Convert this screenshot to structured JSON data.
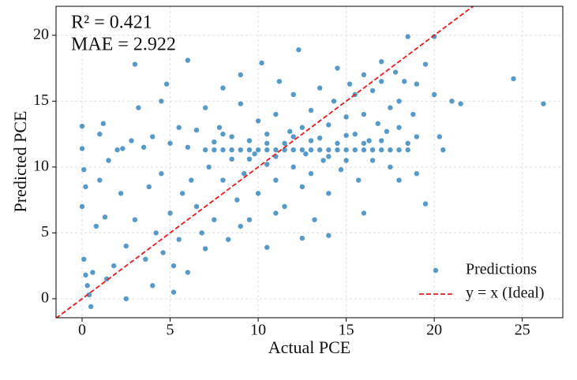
{
  "chart_data": {
    "type": "scatter",
    "xlabel": "Actual PCE",
    "ylabel": "Predicted PCE",
    "annotations": [
      "R² = 0.421",
      "MAE = 2.922"
    ],
    "xlim": [
      -1.48,
      27.3
    ],
    "ylim": [
      -1.44,
      22.2
    ],
    "xticks": [
      0,
      5,
      10,
      15,
      20,
      25
    ],
    "yticks": [
      0,
      5,
      10,
      15,
      20
    ],
    "grid": true,
    "legend": "lower right",
    "series": [
      {
        "name": "Predictions",
        "color": "#1f77b4",
        "x": [
          0,
          0,
          0.1,
          0.2,
          0,
          0.1,
          0.2,
          0.3,
          0.4,
          0.5,
          0.6,
          0.8,
          1,
          1.2,
          1,
          1.5,
          1.3,
          1.4,
          1.8,
          2,
          2.3,
          2.2,
          2.5,
          2.5,
          2.8,
          3,
          3,
          3.2,
          3.5,
          3.6,
          3.8,
          4,
          4,
          4.2,
          4.5,
          4.5,
          4.8,
          4.6,
          5,
          5,
          5.2,
          5.5,
          5.5,
          5.7,
          6,
          6,
          6.2,
          6.5,
          6.5,
          6.8,
          7,
          7,
          7.2,
          7.5,
          7.5,
          7.8,
          8,
          8,
          8,
          8.3,
          8.5,
          8.5,
          8.8,
          9,
          9,
          9,
          9.2,
          9.5,
          9.5,
          9.8,
          10,
          10,
          10,
          10.2,
          10.5,
          10.5,
          11,
          11,
          11,
          11.2,
          11.5,
          11.5,
          11.8,
          12,
          12,
          12,
          12.3,
          12.5,
          12.5,
          12.7,
          13,
          13,
          13,
          13.2,
          13.5,
          13.5,
          13.7,
          14,
          14,
          14,
          14.3,
          14.5,
          14.5,
          14.7,
          15,
          15,
          15,
          15.2,
          15.5,
          15.5,
          15.7,
          16,
          16,
          16,
          16.3,
          16.5,
          16.5,
          16.8,
          17,
          17,
          17,
          17.3,
          17.5,
          17.5,
          17.8,
          18,
          18,
          18,
          18.3,
          18.5,
          18.5,
          18.8,
          19,
          19,
          19,
          19.5,
          19.5,
          20,
          20,
          20.3,
          20.5,
          21,
          21.5,
          24.5,
          26.2,
          12.5,
          14,
          16,
          10.5,
          18,
          9,
          11,
          7,
          6,
          5.2,
          8,
          13,
          15,
          17,
          16,
          12,
          14,
          11,
          10.5,
          9.5,
          12.5,
          13.5,
          14.5,
          15.5,
          16.5,
          17.5,
          18.5,
          11.5,
          10.5,
          9.5,
          8.5,
          7.5
        ],
        "values": [
          13.1,
          11.4,
          9.8,
          8.5,
          7,
          3,
          1.8,
          1,
          0.3,
          -0.6,
          2,
          5.5,
          12.5,
          13.3,
          9,
          10.5,
          6.2,
          1.5,
          2.5,
          11.3,
          11.4,
          8,
          4,
          0,
          12,
          17.8,
          6,
          14.5,
          11.5,
          3,
          8.5,
          12.3,
          1,
          5,
          15,
          9.5,
          16.3,
          3.5,
          11.8,
          6.5,
          2.5,
          13,
          4.5,
          8,
          18.1,
          11.5,
          9,
          7,
          12.8,
          5,
          11.3,
          14.5,
          10,
          6,
          11.9,
          13,
          11.3,
          9,
          16,
          4.5,
          12.3,
          10.6,
          7.5,
          11.3,
          14.8,
          17,
          9.5,
          12,
          6,
          11,
          11.3,
          13.5,
          8,
          17.9,
          10.2,
          12.5,
          11.3,
          14,
          9,
          16.5,
          11.8,
          7,
          12.7,
          11.3,
          10,
          15.5,
          18.9,
          13,
          8.5,
          11,
          11.3,
          14.3,
          9.5,
          6,
          12.2,
          16,
          10.5,
          11.3,
          13.2,
          8,
          15,
          11.8,
          17.5,
          9.8,
          11.3,
          13.8,
          10.5,
          16.3,
          12.5,
          15.5,
          9,
          11.3,
          14,
          17,
          12,
          10.5,
          15.8,
          13.3,
          11.3,
          16.5,
          18,
          12.7,
          14.5,
          10,
          17.2,
          11.3,
          15,
          13,
          16.5,
          11.8,
          19.9,
          14,
          12.3,
          9.5,
          16.3,
          17.8,
          7.2,
          19.9,
          15.5,
          12.3,
          11.3,
          15,
          14.8,
          16.7,
          14.8,
          4.6,
          4.8,
          6.5,
          3.9,
          9,
          5.5,
          6.5,
          3.8,
          2,
          0.5,
          12.5,
          12,
          12.4,
          12,
          11.8,
          12.3,
          10.8,
          10.8,
          11.8,
          10.6,
          11.3,
          11.3,
          11.3,
          11.3,
          11.3,
          11.3,
          11.3,
          11.3,
          11.3,
          11.3,
          11.3,
          11.3
        ]
      },
      {
        "name": "y = x (Ideal)",
        "color": "#e41a1c",
        "x": [
          -1.48,
          22.2
        ],
        "values": [
          -1.48,
          22.2
        ]
      }
    ]
  }
}
